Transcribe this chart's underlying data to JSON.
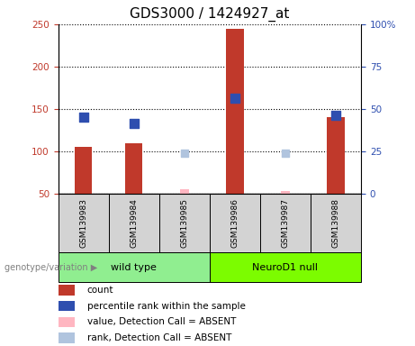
{
  "title": "GDS3000 / 1424927_at",
  "samples": [
    "GSM139983",
    "GSM139984",
    "GSM139985",
    "GSM139986",
    "GSM139987",
    "GSM139988"
  ],
  "group_names": [
    "wild type",
    "NeuroD1 null"
  ],
  "group_colors": [
    "#90EE90",
    "#7CFC00"
  ],
  "group_ranges": [
    [
      0,
      2
    ],
    [
      3,
      5
    ]
  ],
  "count_values": [
    105,
    110,
    null,
    245,
    null,
    140
  ],
  "rank_values": [
    140,
    133,
    null,
    163,
    null,
    143
  ],
  "count_absent": [
    null,
    null,
    55,
    null,
    53,
    null
  ],
  "rank_absent": [
    null,
    null,
    98,
    null,
    98,
    null
  ],
  "ylim_left": [
    50,
    250
  ],
  "ylim_right": [
    0,
    100
  ],
  "yticks_left": [
    50,
    100,
    150,
    200,
    250
  ],
  "yticks_right": [
    0,
    25,
    50,
    75,
    100
  ],
  "ytick_labels_right": [
    "0",
    "25",
    "50",
    "75",
    "100%"
  ],
  "bar_width": 0.35,
  "color_count": "#C0392B",
  "color_rank": "#2E4EAF",
  "color_count_absent": "#FFB6C1",
  "color_rank_absent": "#B0C4DE",
  "bg_samples": "#D3D3D3",
  "legend_items": [
    {
      "color": "#C0392B",
      "label": "count"
    },
    {
      "color": "#2E4EAF",
      "label": "percentile rank within the sample"
    },
    {
      "color": "#FFB6C1",
      "label": "value, Detection Call = ABSENT"
    },
    {
      "color": "#B0C4DE",
      "label": "rank, Detection Call = ABSENT"
    }
  ],
  "genotype_label": "genotype/variation",
  "title_fontsize": 11,
  "tick_fontsize": 7.5,
  "sample_fontsize": 6.5,
  "group_fontsize": 8,
  "legend_fontsize": 7.5
}
